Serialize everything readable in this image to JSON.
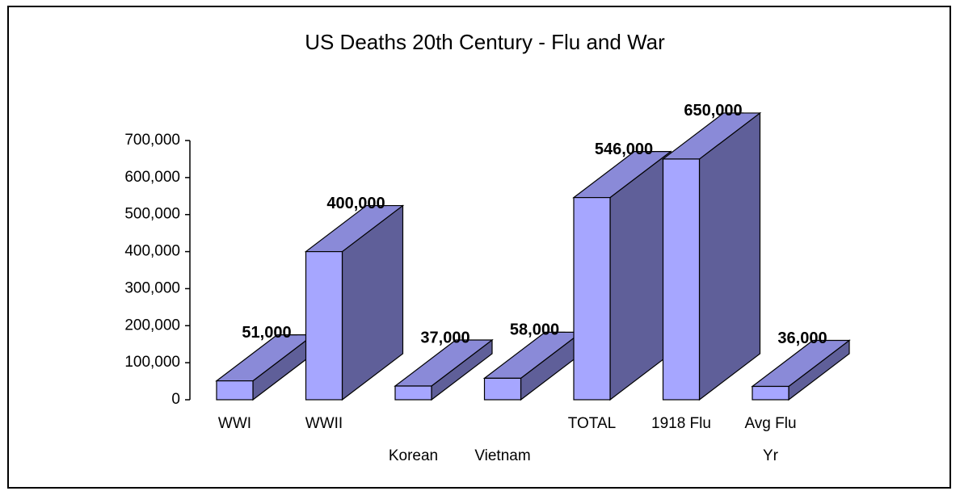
{
  "chart_data": {
    "type": "bar3d",
    "title": "US  Deaths 20th Century  -  Flu and War",
    "categories": [
      "WWI",
      "WWII",
      "Korean",
      "Vietnam",
      "TOTAL",
      "1918 Flu",
      "Avg Flu Yr"
    ],
    "values": [
      51000,
      400000,
      37000,
      58000,
      546000,
      650000,
      36000
    ],
    "value_labels": [
      "51,000",
      "400,000",
      "37,000",
      "58,000",
      "546,000",
      "650,000",
      "36,000"
    ],
    "color": "#a6a6ff",
    "ylim": [
      0,
      700000
    ],
    "yticks": [
      0,
      {
        "value": 100000,
        "label": "100,000"
      },
      {
        "value": 200000,
        "label": "200,000"
      },
      {
        "value": 300000,
        "label": "300,000"
      },
      {
        "value": 400000,
        "label": "400,000"
      },
      {
        "value": 500000,
        "label": "500,000"
      },
      {
        "value": 600000,
        "label": "600,000"
      },
      {
        "value": 700000,
        "label": "700,000"
      }
    ]
  }
}
